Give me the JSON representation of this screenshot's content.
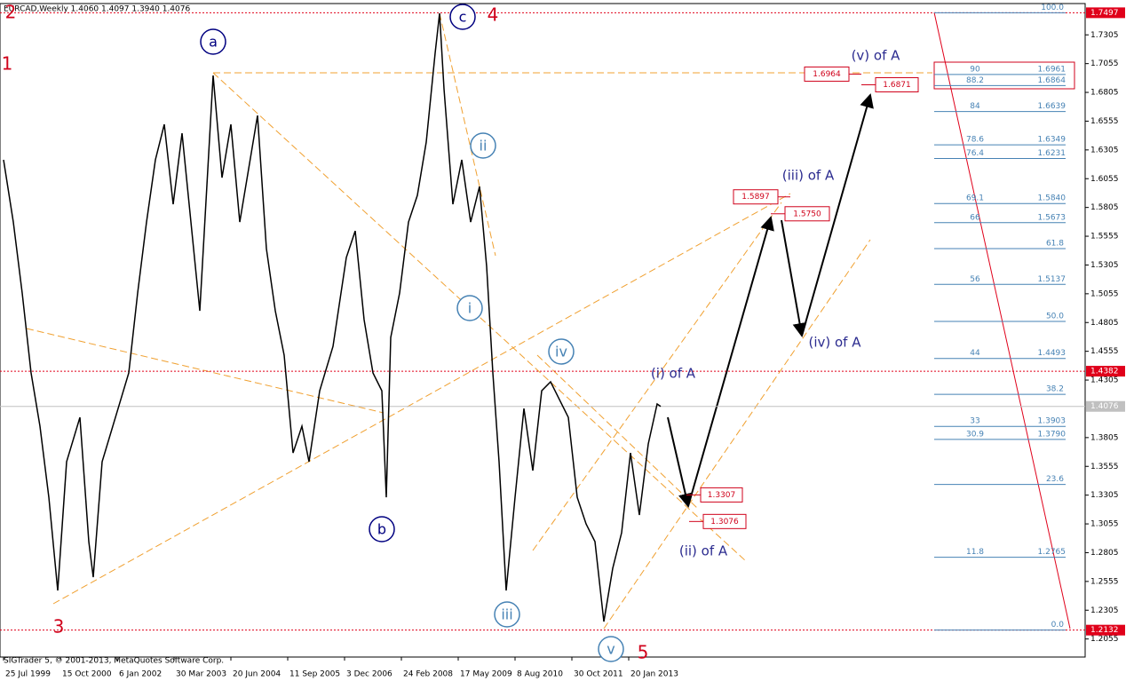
{
  "chart_data": {
    "type": "line",
    "header": "EURCAD,Weekly  1.4060 1.4097 1.3940 1.4076",
    "footer": "SIGTrader 5, © 2001-2013, MetaQuotes Software Corp.",
    "xlim": [
      -4,
      1218
    ],
    "ylim": [
      1.1898,
      1.7577
    ],
    "xticks": [
      {
        "value": 0,
        "label": "25 Jul 1999"
      },
      {
        "value": 64,
        "label": "15 Oct 2000"
      },
      {
        "value": 128,
        "label": "6 Jan 2002"
      },
      {
        "value": 192,
        "label": "30 Mar 2003"
      },
      {
        "value": 256,
        "label": "20 Jun 2004"
      },
      {
        "value": 320,
        "label": "11 Sep 2005"
      },
      {
        "value": 384,
        "label": "3 Dec 2006"
      },
      {
        "value": 448,
        "label": "24 Feb 2008"
      },
      {
        "value": 512,
        "label": "17 May 2009"
      },
      {
        "value": 576,
        "label": "8 Aug 2010"
      },
      {
        "value": 640,
        "label": "30 Oct 2011"
      },
      {
        "value": 704,
        "label": "20 Jan 2013"
      }
    ],
    "yticks": [
      1.7305,
      1.7055,
      1.6805,
      1.6555,
      1.6305,
      1.6055,
      1.5805,
      1.5555,
      1.5305,
      1.5055,
      1.4805,
      1.4555,
      1.4305,
      1.3805,
      1.3555,
      1.3305,
      1.3055,
      1.2805,
      1.2555,
      1.2305,
      1.2055
    ],
    "series": [
      {
        "name": "EURCAD",
        "color": "#000000",
        "x": [
          0,
          11,
          21,
          31,
          41,
          51,
          61,
          71,
          86,
          96,
          101,
          111,
          126,
          141,
          151,
          161,
          171,
          181,
          191,
          201,
          211,
          221,
          236,
          246,
          256,
          266,
          276,
          286,
          296,
          306,
          316,
          326,
          336,
          344,
          356,
          371,
          386,
          396,
          406,
          416,
          426,
          431,
          436,
          446,
          456,
          466,
          476,
          486,
          491,
          496,
          506,
          516,
          526,
          536,
          544,
          551,
          558,
          566,
          576,
          586,
          596,
          606,
          616,
          626,
          636,
          646,
          656,
          666,
          676,
          686,
          696,
          706,
          716,
          726,
          736,
          740
        ],
        "values": [
          1.6219,
          1.5678,
          1.5061,
          1.4367,
          1.3904,
          1.3286,
          1.2476,
          1.3595,
          1.3981,
          1.2901,
          1.2592,
          1.3595,
          1.3981,
          1.4367,
          1.5061,
          1.5678,
          1.6219,
          1.6527,
          1.5833,
          1.645,
          1.5678,
          1.4907,
          1.6952,
          1.6064,
          1.6527,
          1.5678,
          1.6141,
          1.6604,
          1.5447,
          1.4907,
          1.4521,
          1.3672,
          1.3904,
          1.3595,
          1.4212,
          1.4598,
          1.537,
          1.5601,
          1.483,
          1.4367,
          1.4212,
          1.3286,
          1.4675,
          1.5061,
          1.5678,
          1.591,
          1.6373,
          1.7145,
          1.7492,
          1.6836,
          1.5833,
          1.6219,
          1.5678,
          1.5987,
          1.5293,
          1.4367,
          1.3595,
          1.2476,
          1.3286,
          1.4058,
          1.3518,
          1.4212,
          1.429,
          1.4135,
          1.3981,
          1.3286,
          1.3055,
          1.2901,
          1.2206,
          1.2669,
          1.2978,
          1.3672,
          1.3132,
          1.3749,
          1.4097,
          1.4076
        ]
      }
    ],
    "levels": [
      1.7497,
      1.4382,
      1.2132
    ],
    "last_price": 1.4076,
    "fib": [
      {
        "level": {
          "value": 100,
          "label": "100.0"
        }
      },
      {
        "level": 90,
        "price": 1.6961
      },
      {
        "level": 88.2,
        "price": 1.6864
      },
      {
        "level": 84,
        "price": 1.6639
      },
      {
        "level": 78.6,
        "price": 1.6349
      },
      {
        "level": 76.4,
        "price": 1.6231
      },
      {
        "level": 69.1,
        "price": {
          "value": 1.584,
          "label": "1.5840"
        }
      },
      {
        "level": 66,
        "price": 1.5673
      },
      {
        "level": 61.8
      },
      {
        "level": 56,
        "price": 1.5137
      },
      {
        "level": {
          "value": 50,
          "label": "50.0"
        }
      },
      {
        "level": 44,
        "price": 1.4493
      },
      {
        "level": 38.2
      },
      {
        "level": 33,
        "price": 1.3903
      },
      {
        "level": 30.9,
        "price": {
          "value": 1.379,
          "label": "1.3790"
        }
      },
      {
        "level": 23.6
      },
      {
        "level": 11.8,
        "price": 1.2765
      },
      {
        "level": {
          "value": 0,
          "label": "0.0"
        }
      }
    ],
    "targets": [
      1.6964,
      1.6871,
      1.5897,
      {
        "value": 1.575,
        "label": "1.5750"
      },
      1.3307,
      1.3076
    ],
    "counts": [
      "2",
      "1",
      "3",
      "4",
      "5"
    ],
    "circled": [
      "a",
      "b",
      "c",
      "ii",
      "i",
      "iv",
      "iii",
      "v"
    ],
    "waves": [
      "(v) of A",
      "(iii) of A",
      "(iv)  of A",
      "(i) of A",
      "(ii) of A"
    ]
  }
}
